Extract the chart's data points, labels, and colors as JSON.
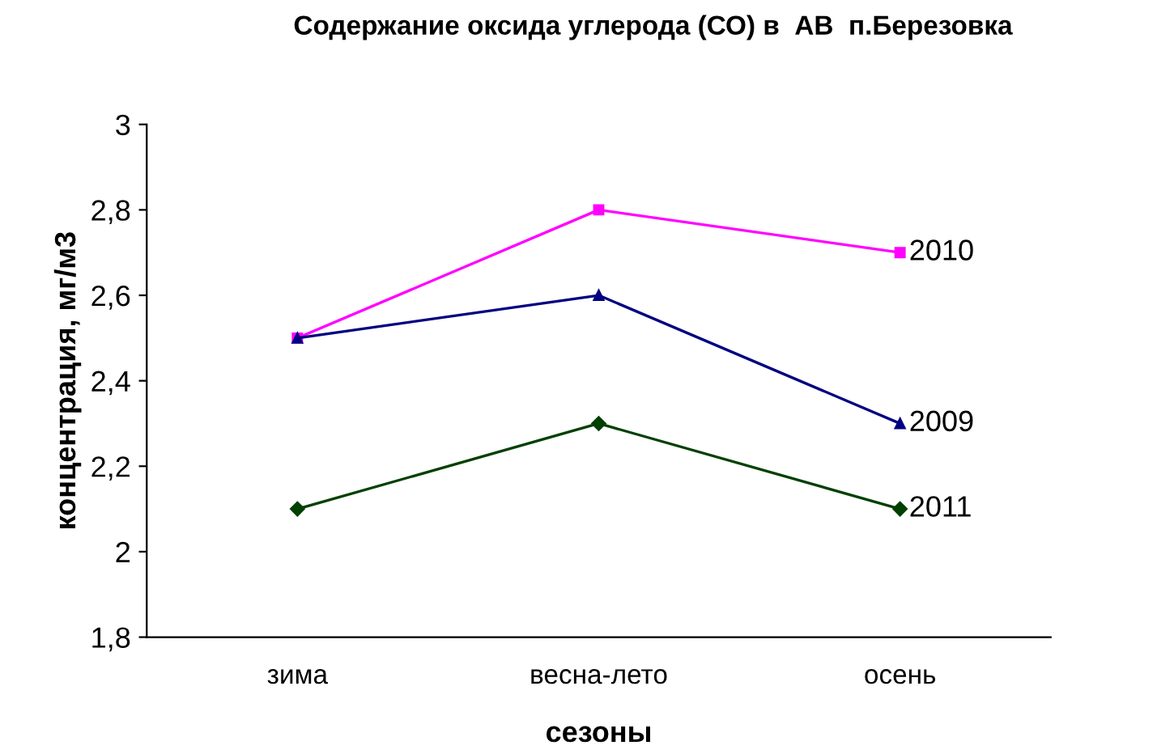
{
  "chart_data": {
    "type": "line",
    "title": "Содержание оксида углерода (СО) в  АВ  п.Березовка",
    "xlabel": "сезоны",
    "ylabel": "концентрация, мг/м3",
    "categories": [
      "зима",
      "весна-лето",
      "осень"
    ],
    "series": [
      {
        "name": "2010",
        "color": "#ff00ff",
        "marker": "square",
        "values": [
          2.5,
          2.8,
          2.7
        ]
      },
      {
        "name": "2009",
        "color": "#000080",
        "marker": "triangle",
        "values": [
          2.5,
          2.6,
          2.3
        ]
      },
      {
        "name": "2011",
        "color": "#004000",
        "marker": "diamond",
        "values": [
          2.1,
          2.3,
          2.1
        ]
      }
    ],
    "ylim": [
      1.8,
      3
    ],
    "yticks": [
      {
        "value": 1.8,
        "label": "1,8"
      },
      {
        "value": 2,
        "label": "2"
      },
      {
        "value": 2.2,
        "label": "2,2"
      },
      {
        "value": 2.4,
        "label": "2,4"
      },
      {
        "value": 2.6,
        "label": "2,6"
      },
      {
        "value": 2.8,
        "label": "2,8"
      },
      {
        "value": 3,
        "label": "3"
      }
    ],
    "grid": false,
    "legend": false
  }
}
